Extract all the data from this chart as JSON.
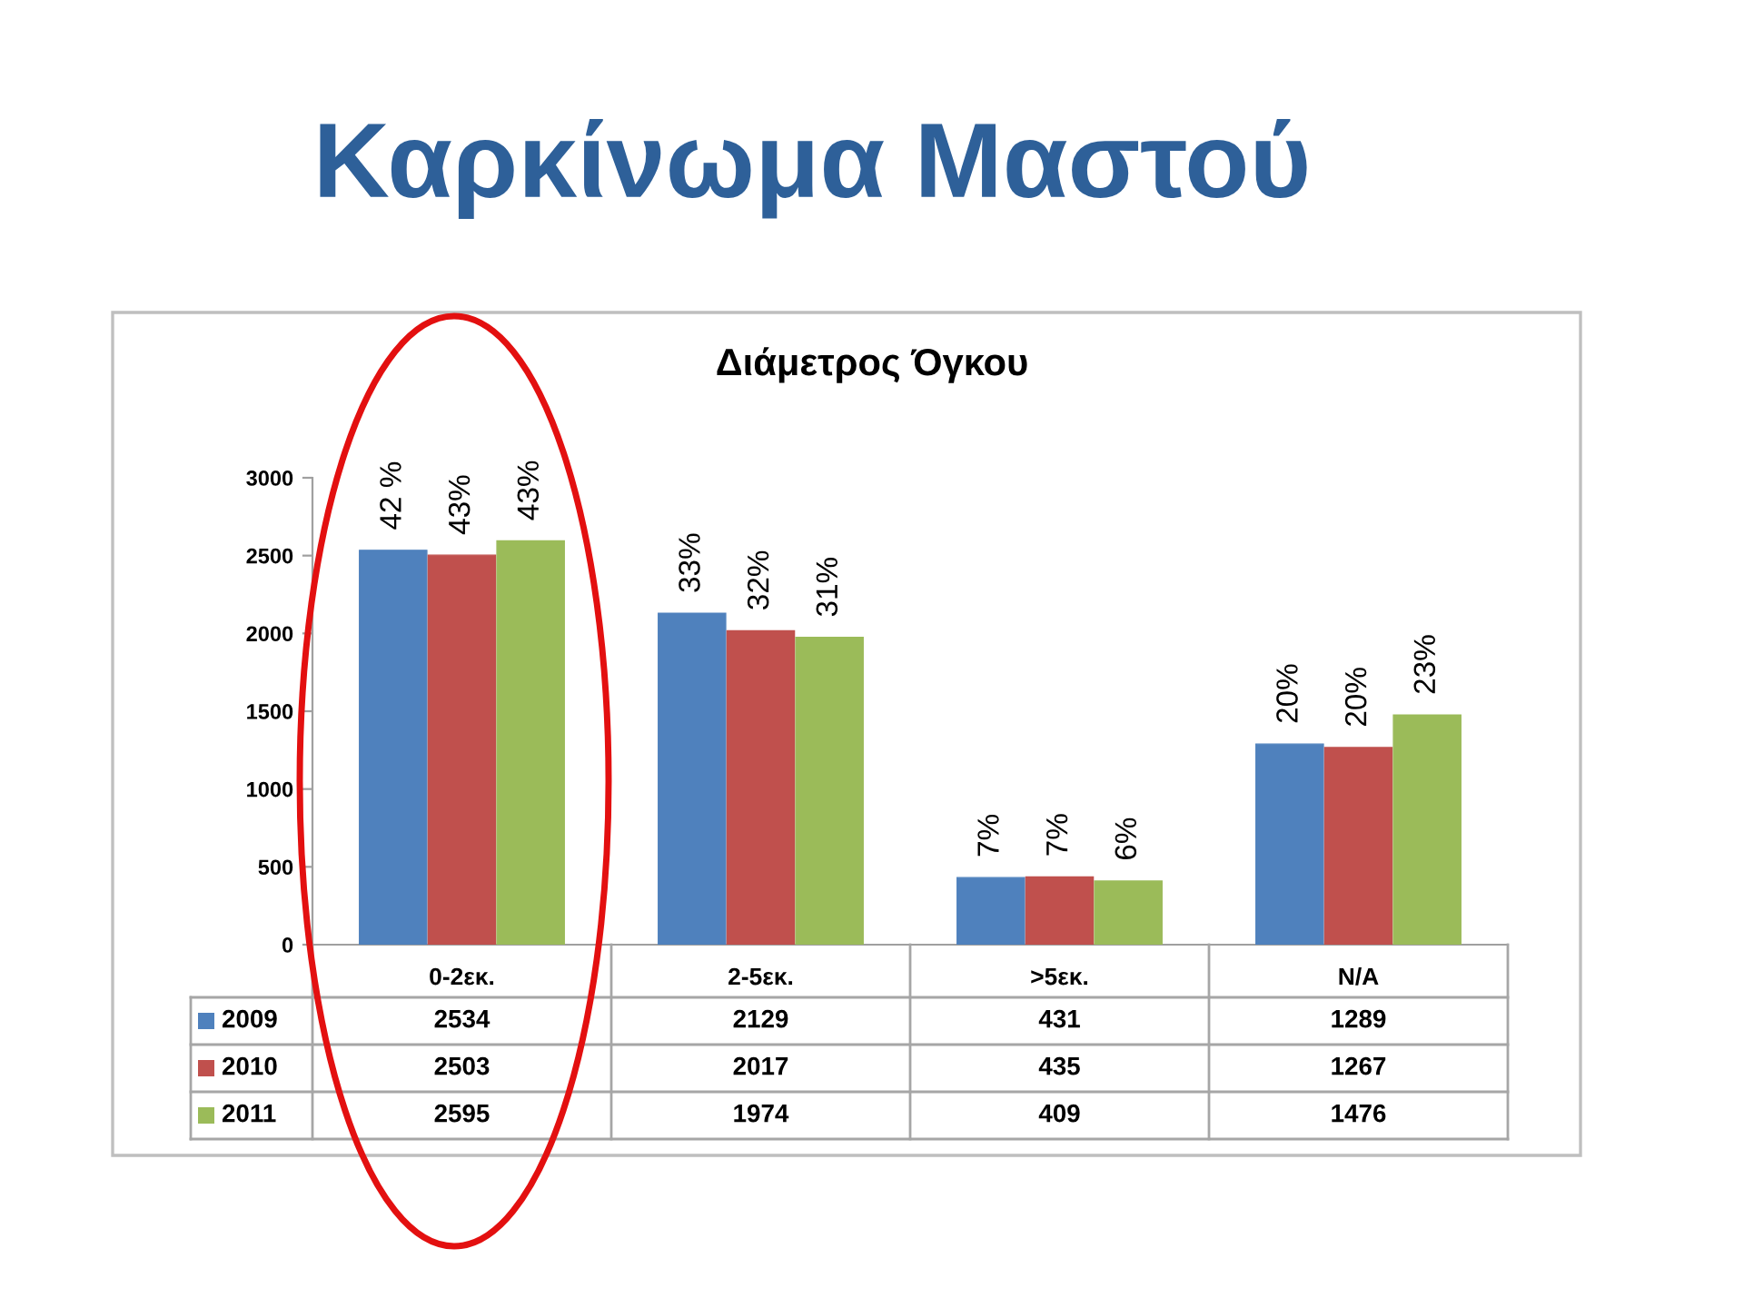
{
  "chart_data": {
    "type": "bar",
    "title": "Καρκίνωμα Μαστού",
    "subtitle": "Διάμετρος Όγκου",
    "categories": [
      "0-2εκ.",
      "2-5εκ.",
      ">5εκ.",
      "N/A"
    ],
    "series": [
      {
        "name": "2009",
        "color": "#4f81bd",
        "values": [
          2534,
          2129,
          431,
          1289
        ]
      },
      {
        "name": "2010",
        "color": "#c0504d",
        "values": [
          2503,
          2017,
          435,
          1267
        ]
      },
      {
        "name": "2011",
        "color": "#9bbb59",
        "values": [
          2595,
          1974,
          409,
          1476
        ]
      }
    ],
    "ylim": [
      0,
      3000
    ],
    "yticks": [
      0,
      500,
      1000,
      1500,
      2000,
      2500,
      3000
    ],
    "data_labels": true,
    "legend": "bottom",
    "annotations": [
      "42 %",
      "43%",
      "43%",
      "33%",
      "32%",
      "31%",
      "7%",
      "7%",
      "6%",
      "20%",
      "20%",
      "23%"
    ]
  }
}
